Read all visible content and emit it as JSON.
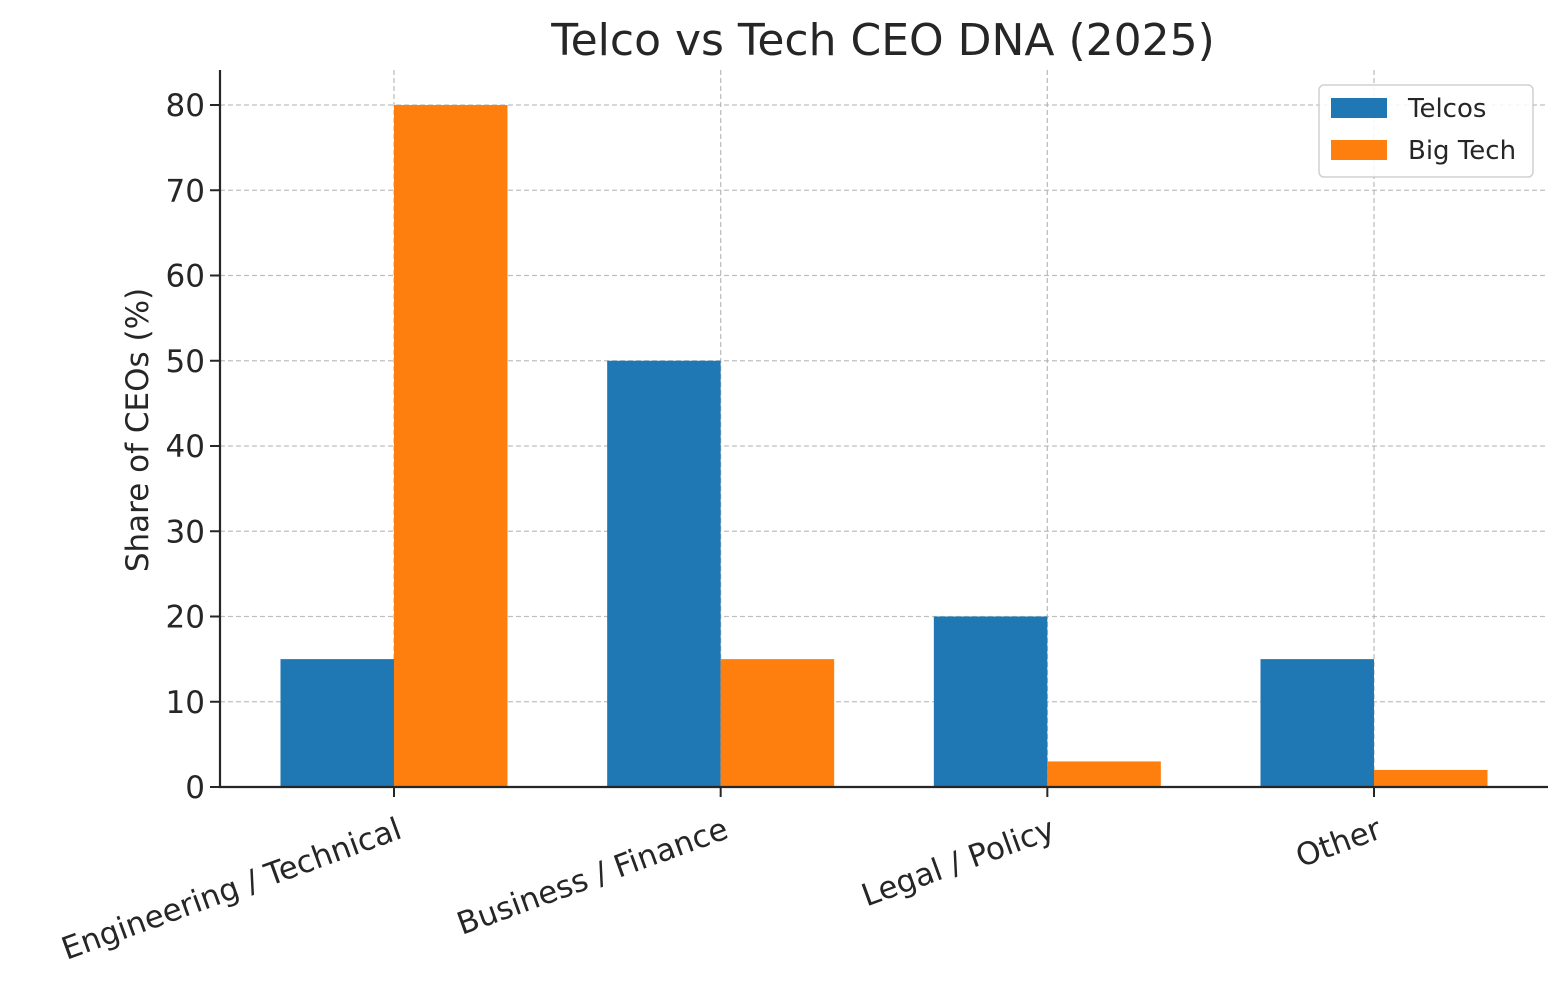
{
  "chart_data": {
    "type": "bar",
    "title": "Telco vs Tech CEO DNA (2025)",
    "xlabel": "",
    "ylabel": "Share of CEOs (%)",
    "categories": [
      "Engineering / Technical",
      "Business / Finance",
      "Legal / Policy",
      "Other"
    ],
    "series": [
      {
        "name": "Telcos",
        "values": [
          15,
          50,
          20,
          15
        ],
        "color": "#1f77b4"
      },
      {
        "name": "Big Tech",
        "values": [
          80,
          15,
          3,
          2
        ],
        "color": "#ff7f0e"
      }
    ],
    "ylim": [
      0,
      84
    ],
    "yticks": [
      0,
      10,
      20,
      30,
      40,
      50,
      60,
      70,
      80
    ],
    "grid": true,
    "legend_position": "top-right"
  }
}
